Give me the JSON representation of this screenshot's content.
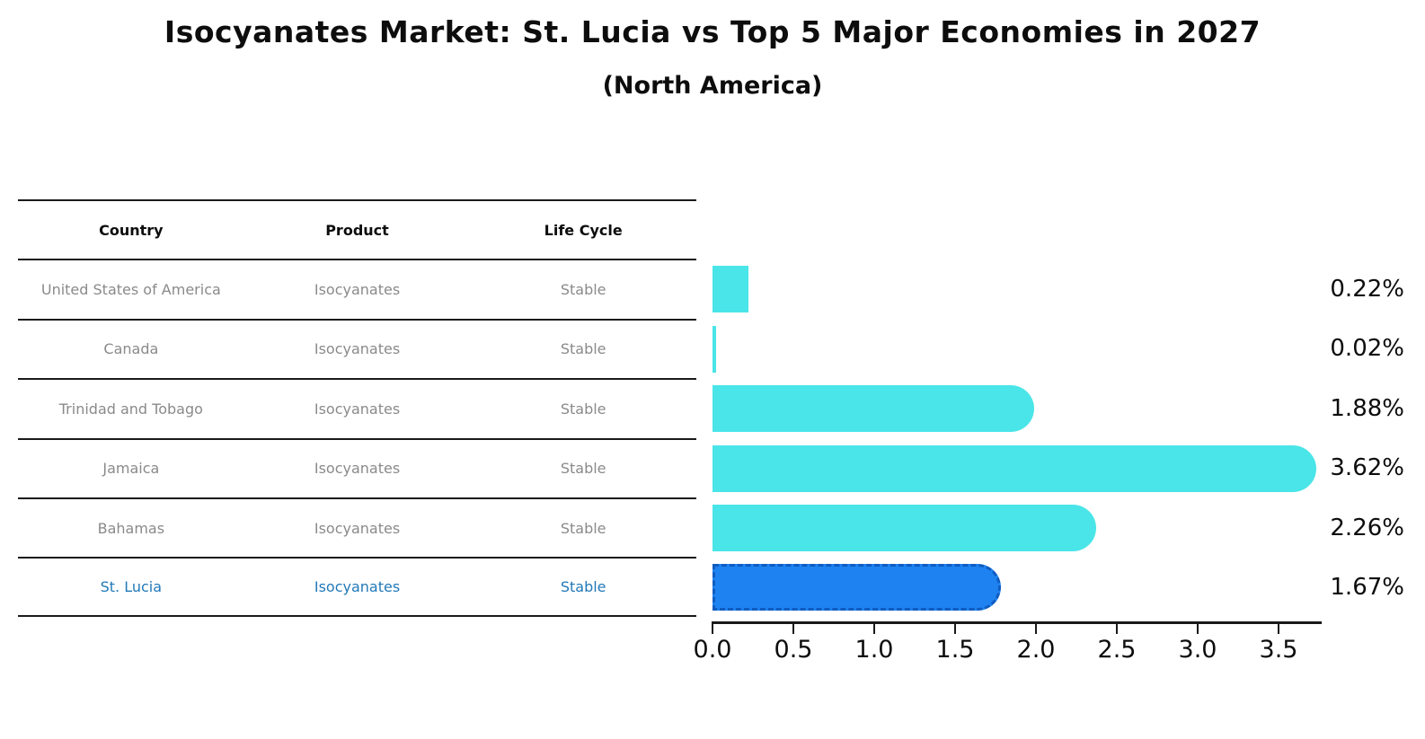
{
  "title": "Isocyanates Market: St. Lucia vs Top 5 Major Economies in 2027",
  "subtitle": "(North America)",
  "table": {
    "headers": [
      "Country",
      "Product",
      "Life Cycle"
    ],
    "rows": [
      {
        "country": "United States of America",
        "product": "Isocyanates",
        "life_cycle": "Stable"
      },
      {
        "country": "Canada",
        "product": "Isocyanates",
        "life_cycle": "Stable"
      },
      {
        "country": "Trinidad and Tobago",
        "product": "Isocyanates",
        "life_cycle": "Stable"
      },
      {
        "country": "Jamaica",
        "product": "Isocyanates",
        "life_cycle": "Stable"
      },
      {
        "country": "Bahamas",
        "product": "Isocyanates",
        "life_cycle": "Stable"
      },
      {
        "country": "St. Lucia",
        "product": "Isocyanates",
        "life_cycle": "Stable"
      }
    ],
    "highlight_row": 5
  },
  "chart_data": {
    "type": "bar",
    "orientation": "horizontal",
    "title": "Isocyanates Market: St. Lucia vs Top 5 Major Economies in 2027",
    "subtitle": "(North America)",
    "categories": [
      "United States of America",
      "Canada",
      "Trinidad and Tobago",
      "Jamaica",
      "Bahamas",
      "St. Lucia"
    ],
    "values": [
      0.22,
      0.02,
      1.88,
      3.62,
      2.26,
      1.67
    ],
    "value_labels": [
      "0.22%",
      "0.02%",
      "1.88%",
      "3.62%",
      "2.26%",
      "1.67%"
    ],
    "unit": "%",
    "xticklabels": [
      "0.0",
      "0.5",
      "1.0",
      "1.5",
      "2.0",
      "2.5",
      "3.0",
      "3.5"
    ],
    "xtick_values": [
      0.0,
      0.5,
      1.0,
      1.5,
      2.0,
      2.5,
      3.0,
      3.5
    ],
    "xlim": [
      0,
      3.77
    ],
    "grid": false,
    "legend": null,
    "highlight_index": 5
  },
  "colors": {
    "black": "#0d0d0d",
    "line": "#1a1a1a",
    "table_text": "#8a8a8a",
    "highlight_text": "#2279b8",
    "bar_cyan": "#4ae5e8",
    "bar_blue": "#1e82f0",
    "blue_border": "#0f5cc0"
  }
}
